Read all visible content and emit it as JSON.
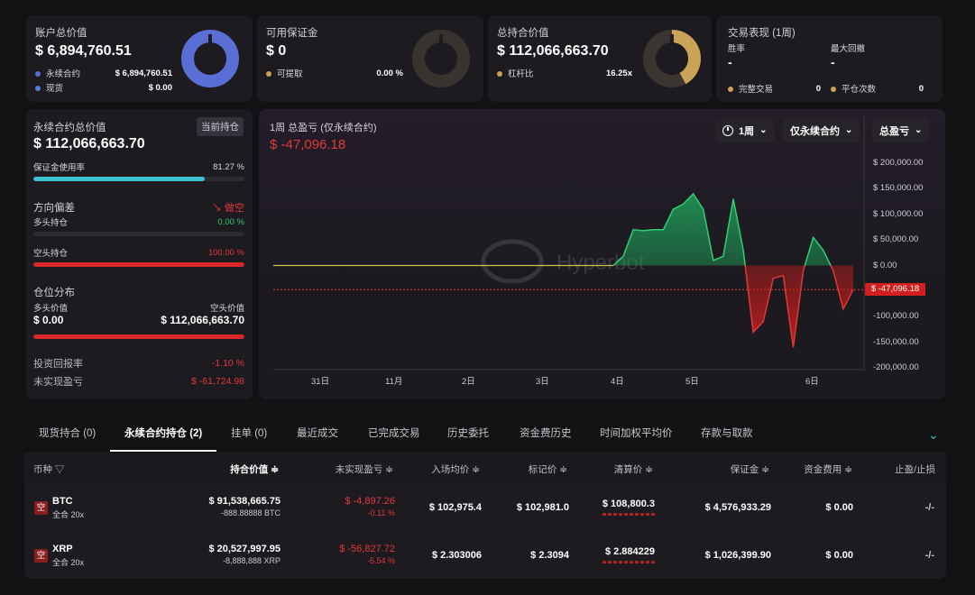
{
  "cards": {
    "account": {
      "title": "账户总价值",
      "value": "$ 6,894,760.51",
      "rows": [
        {
          "label": "永续合约",
          "value": "$ 6,894,760.51"
        },
        {
          "label": "现货",
          "value": "$ 0.00"
        }
      ]
    },
    "margin": {
      "title": "可用保证金",
      "value": "$ 0",
      "rows": [
        {
          "label": "可提取",
          "value": "0.00 %"
        }
      ]
    },
    "position": {
      "title": "总持合价值",
      "value": "$ 112,066,663.70",
      "rows": [
        {
          "label": "杠杆比",
          "value": "16.25x"
        }
      ]
    },
    "performance": {
      "title": "交易表现 (1周)",
      "win_label": "胜率",
      "win_value": "-",
      "dd_label": "最大回撤",
      "dd_value": "-",
      "done_label": "完整交易",
      "done_value": "0",
      "flat_label": "平仓次数",
      "flat_value": "0"
    }
  },
  "perp": {
    "title": "永续合约总价值",
    "badge": "当前持仓",
    "value": "$ 112,066,663.70",
    "margin_label": "保证金使用率",
    "margin_pct": "81.27 %",
    "margin_fraction": 0.8127,
    "dir_label": "方向偏差",
    "dir_value": "做空",
    "long_label": "多头持仓",
    "long_pct": "0.00 %",
    "long_fraction": 0,
    "short_label": "空头持仓",
    "short_pct": "100.00 %",
    "short_fraction": 1,
    "dist_label": "仓位分布",
    "long_value_label": "多头价值",
    "short_value_label": "空头价值",
    "long_value": "$ 0.00",
    "short_value": "$ 112,066,663.70",
    "roi_label": "投资回报率",
    "roi_value": "-1.10 %",
    "upnl_label": "未实现盈亏",
    "upnl_value": "$ -61,724.98"
  },
  "chart_panel": {
    "title": "1周 总盈亏 (仅永续合约)",
    "value": "$ -47,096.18",
    "dd_period": "1周",
    "dd_type": "仅永续合约",
    "dd_metric": "总盈亏",
    "watermark": "Hyperbot"
  },
  "chart_data": {
    "type": "area",
    "title": "1周 总盈亏 (仅永续合约)",
    "y_ticks": [
      "$ 200,000.00",
      "$ 150,000.00",
      "$ 100,000.00",
      "$ 50,000.00",
      "$ 0.00",
      "-100,000.00",
      "-150,000.00",
      "-200,000.00"
    ],
    "y_tick_values": [
      200000,
      150000,
      100000,
      50000,
      0,
      -100000,
      -150000,
      -200000
    ],
    "x_ticks": [
      "31日",
      "11月",
      "2日",
      "3日",
      "4日",
      "5日",
      "6日"
    ],
    "ylim": [
      -200000,
      200000
    ],
    "current_label": "$ -47,096.18",
    "current_value": -47096.18,
    "x": [
      0,
      1,
      2,
      3,
      4,
      5,
      6,
      7,
      8,
      9,
      10,
      11,
      12,
      13,
      14,
      15,
      16,
      17,
      18,
      19,
      20,
      21,
      22,
      23,
      24,
      25,
      26,
      27,
      28,
      29,
      30,
      31,
      32,
      33,
      34,
      35,
      36,
      37,
      38,
      39,
      40,
      41,
      42,
      43,
      44,
      45,
      46,
      47,
      48,
      49,
      50,
      51,
      52,
      53,
      54,
      55,
      56,
      57,
      58
    ],
    "values": [
      0,
      0,
      0,
      0,
      0,
      0,
      0,
      0,
      0,
      0,
      0,
      0,
      0,
      0,
      0,
      0,
      0,
      0,
      0,
      0,
      0,
      0,
      0,
      0,
      0,
      0,
      0,
      0,
      0,
      0,
      0,
      0,
      0,
      0,
      0,
      18000,
      70000,
      68000,
      70000,
      70000,
      110000,
      120000,
      140000,
      110000,
      10000,
      18000,
      130000,
      30000,
      -130000,
      -110000,
      -25000,
      -20000,
      -160000,
      -10000,
      55000,
      30000,
      -10000,
      -85000,
      -47096
    ]
  },
  "tabs": [
    "现货持合 (0)",
    "永续合约持仓 (2)",
    "挂单 (0)",
    "最近成交",
    "已完成交易",
    "历史委托",
    "资金费历史",
    "时间加权平均价",
    "存款与取款"
  ],
  "table": {
    "headers": [
      "币种",
      "持合价值",
      "未实现盈亏",
      "入场均价",
      "标记价",
      "清算价",
      "保证金",
      "资金费用",
      "止盈/止损"
    ],
    "rows": [
      {
        "icon": "空",
        "coin": "BTC",
        "mode": "全合 20x",
        "value": "$ 91,538,665.75",
        "size": "-888.88888 BTC",
        "pnl": "$ -4,897.26",
        "pnl_pct": "-0.11 %",
        "entry": "$ 102,975.4",
        "mark": "$ 102,981.0",
        "liq": "$ 108,800.3",
        "margin": "$ 4,576,933.29",
        "funding": "$ 0.00",
        "tpsl": "-/-"
      },
      {
        "icon": "空",
        "coin": "XRP",
        "mode": "全合 20x",
        "value": "$ 20,527,997.95",
        "size": "-8,888,888 XRP",
        "pnl": "$ -56,827.72",
        "pnl_pct": "-5.54 %",
        "entry": "$ 2.303006",
        "mark": "$ 2.3094",
        "liq": "$ 2.884229",
        "margin": "$ 1,026,399.90",
        "funding": "$ 0.00",
        "tpsl": "-/-"
      }
    ]
  },
  "colors": {
    "blue": "#5a6fd6",
    "gold": "#c9a456",
    "red": "#e0383a",
    "green": "#2fcf73",
    "cyan": "#3cc0d0"
  },
  "donuts": {
    "account_fraction": 1.0,
    "margin_fraction": 0,
    "position_fraction": 0.42
  }
}
